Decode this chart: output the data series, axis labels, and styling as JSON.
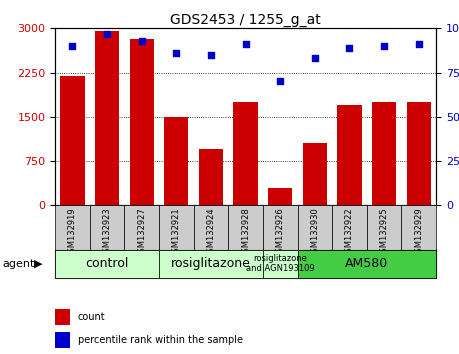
{
  "title": "GDS2453 / 1255_g_at",
  "samples": [
    "GSM132919",
    "GSM132923",
    "GSM132927",
    "GSM132921",
    "GSM132924",
    "GSM132928",
    "GSM132926",
    "GSM132930",
    "GSM132922",
    "GSM132925",
    "GSM132929"
  ],
  "counts": [
    2200,
    2950,
    2820,
    1500,
    950,
    1750,
    300,
    1050,
    1700,
    1750,
    1750
  ],
  "percentiles": [
    90,
    97,
    93,
    86,
    85,
    91,
    70,
    83,
    89,
    90,
    91
  ],
  "ylim_left": [
    0,
    3000
  ],
  "ylim_right": [
    0,
    100
  ],
  "yticks_left": [
    0,
    750,
    1500,
    2250,
    3000
  ],
  "yticks_right": [
    0,
    25,
    50,
    75,
    100
  ],
  "bar_color": "#cc0000",
  "dot_color": "#0000cc",
  "groups": [
    {
      "label": "control",
      "span": [
        0,
        2
      ],
      "color": "#ccffcc",
      "fontsize": 9
    },
    {
      "label": "rosiglitazone",
      "span": [
        3,
        5
      ],
      "color": "#ccffcc",
      "fontsize": 9
    },
    {
      "label": "rosiglitazone\nand AGN193109",
      "span": [
        6,
        6
      ],
      "color": "#ccffcc",
      "fontsize": 6
    },
    {
      "label": "AM580",
      "span": [
        7,
        10
      ],
      "color": "#44cc44",
      "fontsize": 9
    }
  ],
  "agent_label": "agent",
  "legend_count": "count",
  "legend_percentile": "percentile rank within the sample",
  "xtick_bg": "#cccccc",
  "grid_color": "#000000",
  "plot_bg": "#ffffff"
}
